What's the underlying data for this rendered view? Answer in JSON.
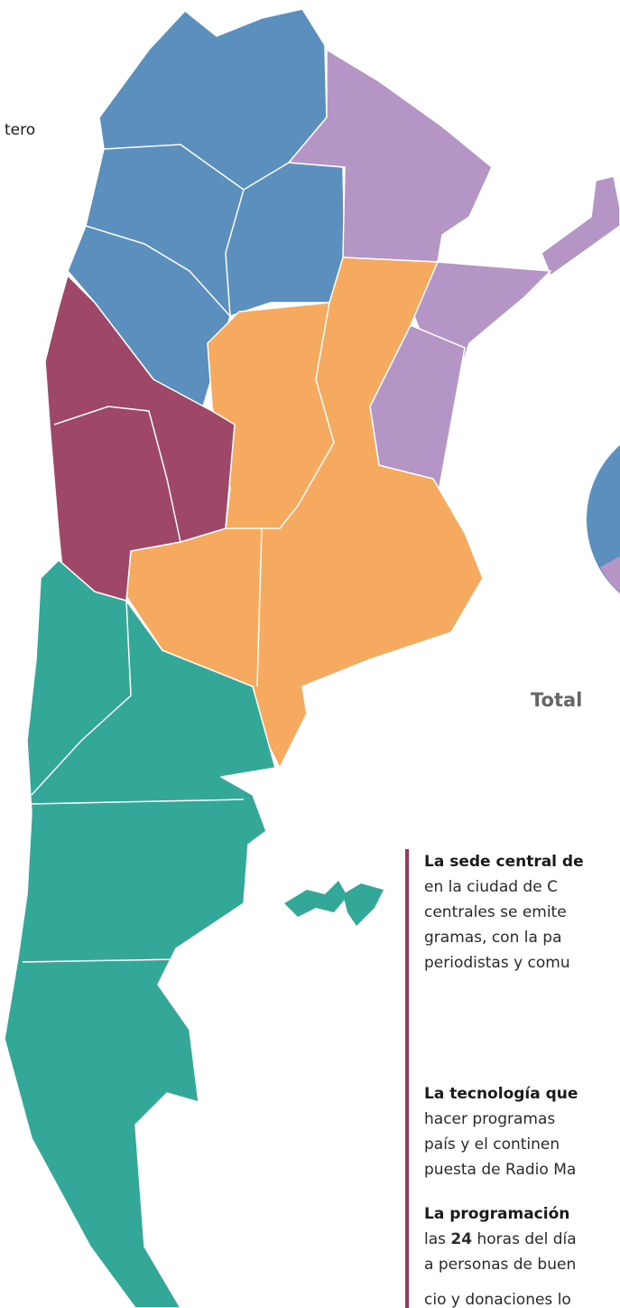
{
  "labels": {
    "top_left": "tero",
    "total": "Total"
  },
  "paragraphs": [
    {
      "heading": "La sede central de",
      "lines": [
        "en la ciudad de C",
        "centrales se emite",
        "gramas, con la pa",
        "periodistas y comu"
      ]
    },
    {
      "heading": "La tecnología que",
      "lines": [
        "hacer programas",
        "país y el continen",
        "puesta de Radio Ma"
      ]
    },
    {
      "heading": "La programación",
      "lines": [
        [
          "las",
          "24",
          "horas del día"
        ],
        "a personas de buen",
        "cio y donaciones lo"
      ]
    }
  ]
}
